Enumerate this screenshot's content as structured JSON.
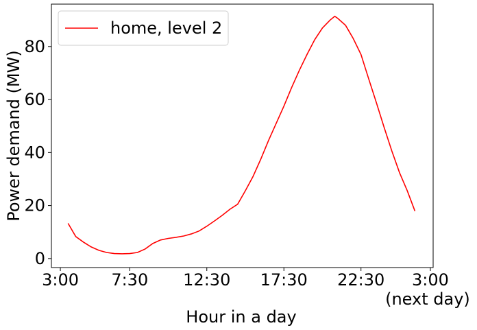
{
  "chart_data": {
    "type": "line",
    "xlabel": "Hour in a day",
    "ylabel": "Power demand (MW)",
    "x": [
      3.5,
      4,
      4.5,
      5,
      5.5,
      6,
      6.5,
      7,
      7.5,
      8,
      8.5,
      9,
      9.5,
      10,
      10.5,
      11,
      11.5,
      12,
      12.5,
      13,
      13.5,
      14,
      14.5,
      15,
      15.5,
      16,
      16.5,
      17,
      17.5,
      18,
      18.5,
      19,
      19.5,
      20,
      20.5,
      20.8,
      21,
      21.5,
      22,
      22.5,
      23,
      23.5,
      24,
      24.5,
      25,
      25.5,
      26
    ],
    "series": [
      {
        "name": "home, level 2",
        "color": "#ff0000",
        "values": [
          13.3,
          8.3,
          6.2,
          4.4,
          3.1,
          2.3,
          1.9,
          1.8,
          1.9,
          2.3,
          3.6,
          5.7,
          7.0,
          7.6,
          8.0,
          8.5,
          9.3,
          10.4,
          12.2,
          14.2,
          16.3,
          18.6,
          20.5,
          25.6,
          31,
          37.5,
          44.5,
          51,
          57.5,
          64.5,
          71,
          77,
          82.6,
          87,
          90,
          91.4,
          90.6,
          88,
          83,
          77,
          67.8,
          58.8,
          49.5,
          40.6,
          32.4,
          25.6,
          17.9
        ]
      }
    ],
    "xlim": [
      2.42,
      27.18
    ],
    "ylim": [
      -3.4,
      96
    ],
    "xticks": [
      {
        "value": 3,
        "label": "3:00"
      },
      {
        "value": 7.5,
        "label": "7:30"
      },
      {
        "value": 12.5,
        "label": "12:30"
      },
      {
        "value": 17.5,
        "label": "17:30"
      },
      {
        "value": 22.5,
        "label": "22:30"
      },
      {
        "value": 27,
        "label": "3:00\n(next day)"
      }
    ],
    "yticks": [
      0,
      20,
      40,
      60,
      80
    ],
    "legend": "upper left",
    "grid": false
  }
}
